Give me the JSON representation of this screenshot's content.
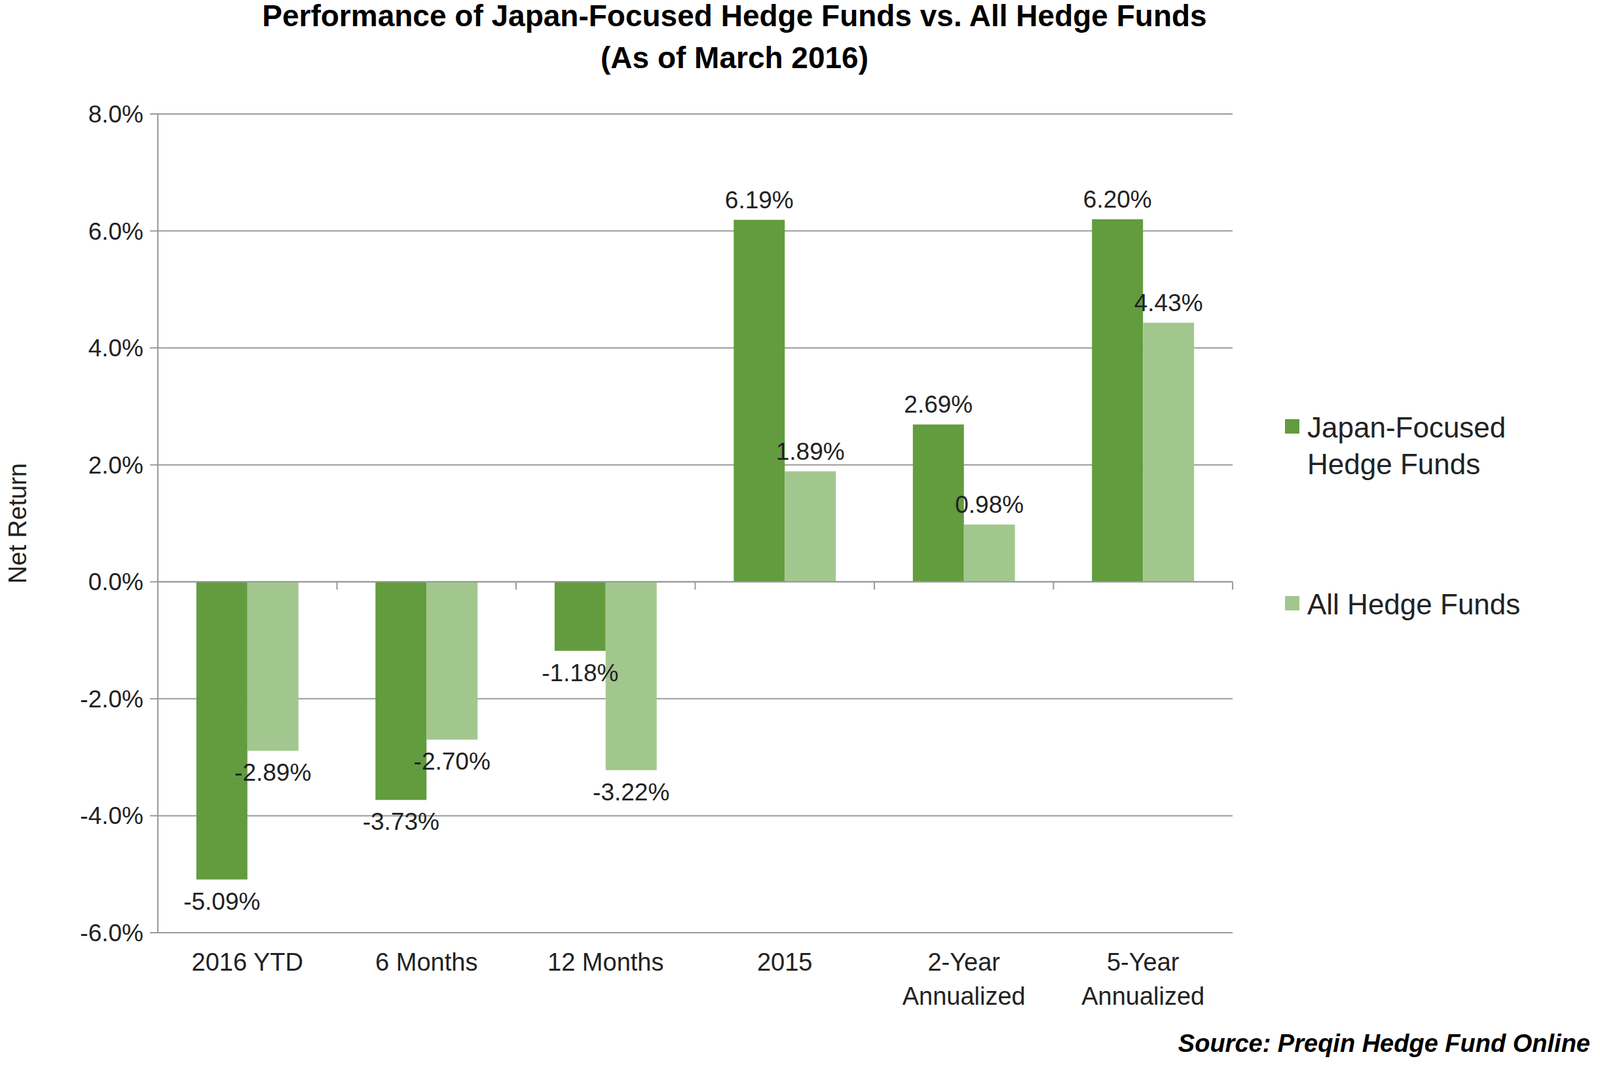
{
  "chart_data": {
    "type": "bar",
    "title": "Performance of Japan-Focused Hedge Funds vs. All Hedge Funds",
    "subtitle": "(As of March 2016)",
    "y_label": "Net Return",
    "annotation": "Source: Preqin Hedge Fund Online",
    "categories": [
      "2016 YTD",
      "6 Months",
      "12 Months",
      "2015",
      "2-Year Annualized",
      "5-Year Annualized"
    ],
    "series": [
      {
        "name": "Japan-Focused Hedge Funds",
        "color": "#629c3e",
        "values": [
          -5.09,
          -3.73,
          -1.18,
          6.19,
          2.69,
          6.2
        ],
        "value_labels": [
          "-5.09%",
          "-3.73%",
          "-1.18%",
          "6.19%",
          "2.69%",
          "6.20%"
        ]
      },
      {
        "name": "All Hedge Funds",
        "color": "#a2c78e",
        "values": [
          -2.89,
          -2.7,
          -3.22,
          1.89,
          0.98,
          4.43
        ],
        "value_labels": [
          "-2.89%",
          "-2.70%",
          "-3.22%",
          "1.89%",
          "0.98%",
          "4.43%"
        ]
      }
    ],
    "ylim": [
      -6,
      8
    ],
    "yticks": [
      {
        "value": -6,
        "label": "-6.0%"
      },
      {
        "value": -4,
        "label": "-4.0%"
      },
      {
        "value": -2,
        "label": "-2.0%"
      },
      {
        "value": 0,
        "label": "0.0%"
      },
      {
        "value": 2,
        "label": "2.0%"
      },
      {
        "value": 4,
        "label": "4.0%"
      },
      {
        "value": 6,
        "label": "6.0%"
      },
      {
        "value": 8,
        "label": "8.0%"
      }
    ],
    "grid": true,
    "legend": "right",
    "data_labels": true
  }
}
